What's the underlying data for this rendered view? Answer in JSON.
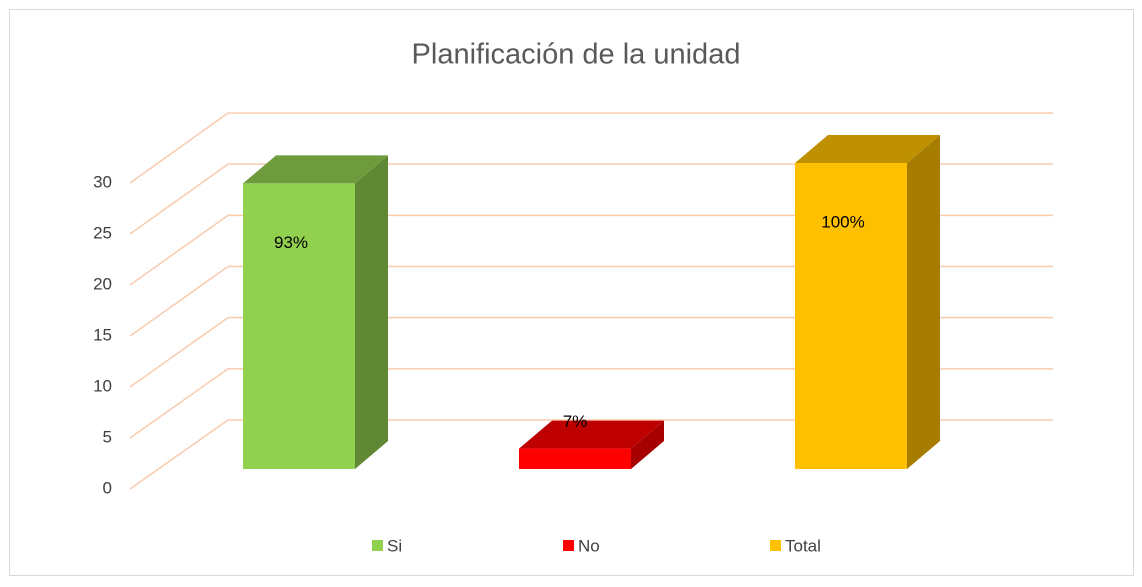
{
  "chart_data": {
    "type": "bar3d",
    "title": "Planificación de la unidad",
    "categories": [
      "Si",
      "No",
      "Total"
    ],
    "values": [
      28,
      2,
      30
    ],
    "value_labels": [
      "93%",
      "7%",
      "100%"
    ],
    "colors": [
      "#92d050",
      "#ff0000",
      "#ffc000"
    ],
    "ylim": [
      0,
      30
    ],
    "yticks": [
      0,
      5,
      10,
      15,
      20,
      25,
      30
    ],
    "grid": true,
    "legend": "bottom"
  }
}
